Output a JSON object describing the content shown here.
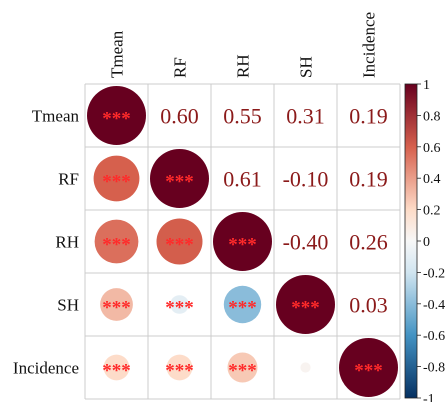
{
  "chart_data": {
    "type": "heatmap",
    "subtype": "correlation-matrix",
    "variables": [
      "Tmean",
      "RF",
      "RH",
      "SH",
      "Incidence"
    ],
    "matrix": [
      [
        1.0,
        0.6,
        0.55,
        0.31,
        0.19
      ],
      [
        0.6,
        1.0,
        0.61,
        -0.1,
        0.19
      ],
      [
        0.55,
        0.61,
        1.0,
        -0.4,
        0.26
      ],
      [
        0.31,
        -0.1,
        -0.4,
        1.0,
        0.03
      ],
      [
        0.19,
        0.19,
        0.26,
        0.03,
        1.0
      ]
    ],
    "upper_labels": [
      [
        "",
        "0.60",
        "0.55",
        "0.31",
        "0.19"
      ],
      [
        "",
        "",
        "0.61",
        "-0.10",
        "0.19"
      ],
      [
        "",
        "",
        "",
        "-0.40",
        "0.26"
      ],
      [
        "",
        "",
        "",
        "",
        "0.03"
      ],
      [
        "",
        "",
        "",
        "",
        ""
      ]
    ],
    "significance": [
      [
        "***",
        "",
        "",
        "",
        ""
      ],
      [
        "***",
        "***",
        "",
        "",
        ""
      ],
      [
        "***",
        "***",
        "***",
        "",
        ""
      ],
      [
        "***",
        "***",
        "***",
        "***",
        ""
      ],
      [
        "***",
        "***",
        "***",
        "",
        "***"
      ]
    ],
    "colorbar": {
      "range": [
        -1,
        1
      ],
      "ticks": [
        "1",
        "0.8",
        "0.6",
        "0.4",
        "0.2",
        "0",
        "-0.2",
        "-0.4",
        "-0.6",
        "-0.8",
        "-1"
      ],
      "positive_color": "#67001f",
      "mid_color": "#f7f7f7",
      "negative_color": "#053061"
    },
    "lower_glyph": "circle",
    "grid": true
  }
}
